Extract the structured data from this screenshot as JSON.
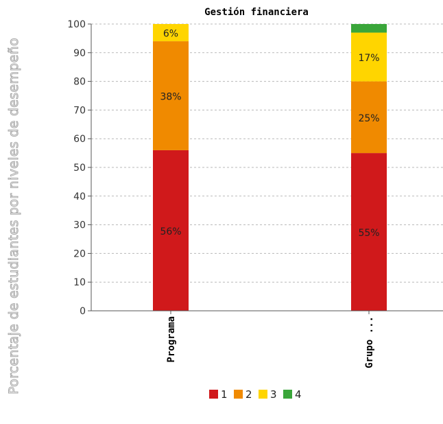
{
  "chart_data": {
    "type": "bar",
    "stacked": true,
    "title": "Gestión financiera",
    "xlabel": "",
    "ylabel": "Porcentaje de estudiantes por niveles de desempeño",
    "ylim": [
      0,
      100
    ],
    "yticks": [
      0,
      10,
      20,
      30,
      40,
      50,
      60,
      70,
      80,
      90,
      100
    ],
    "grid": true,
    "legend_position": "bottom",
    "categories": [
      "Programa",
      "Grupo ..."
    ],
    "series": [
      {
        "name": "1",
        "color": "#d0191b",
        "values": [
          56,
          55
        ],
        "labels": [
          "56%",
          "55%"
        ]
      },
      {
        "name": "2",
        "color": "#f08a00",
        "values": [
          38,
          25
        ],
        "labels": [
          "38%",
          "25%"
        ]
      },
      {
        "name": "3",
        "color": "#ffd500",
        "values": [
          6,
          17
        ],
        "labels": [
          "6%",
          "17%"
        ]
      },
      {
        "name": "4",
        "color": "#3aa63a",
        "values": [
          0,
          3
        ],
        "labels": [
          "",
          ""
        ]
      }
    ]
  }
}
